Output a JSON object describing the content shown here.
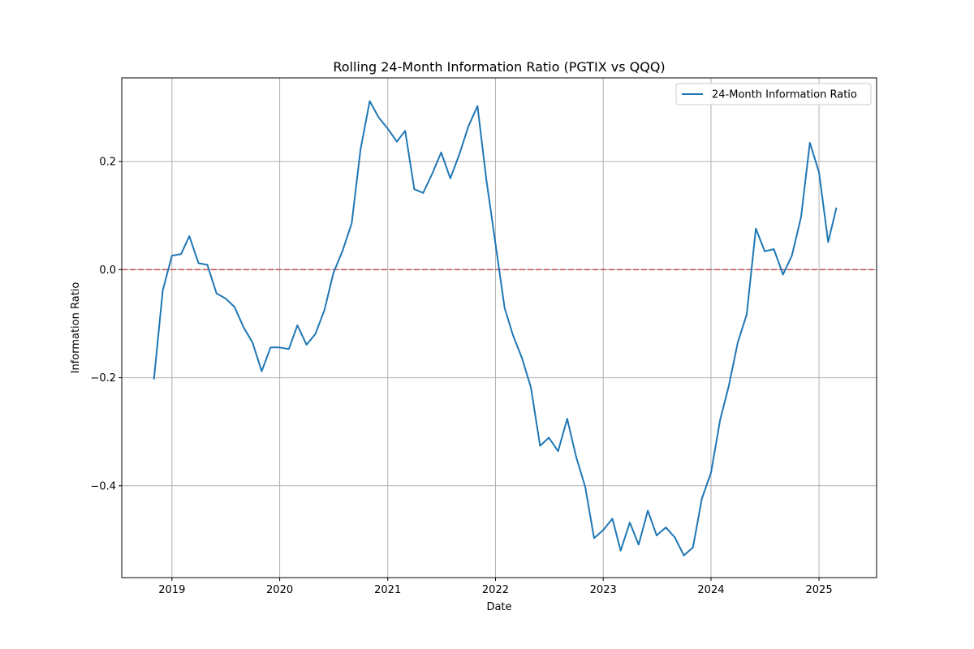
{
  "chart_data": {
    "type": "line",
    "title": "Rolling 24-Month Information Ratio (PGTIX vs QQQ)",
    "xlabel": "Date",
    "ylabel": "Information Ratio",
    "xlim": [
      "2018-07-15",
      "2025-07-15"
    ],
    "ylim": [
      -0.57,
      0.355
    ],
    "x_ticks": [
      "2019-01-01",
      "2020-01-01",
      "2021-01-01",
      "2022-01-01",
      "2023-01-01",
      "2024-01-01",
      "2025-01-01"
    ],
    "x_tick_labels": [
      "2019",
      "2020",
      "2021",
      "2022",
      "2023",
      "2024",
      "2025"
    ],
    "y_ticks": [
      -0.4,
      -0.2,
      0.0,
      0.2
    ],
    "y_tick_labels": [
      "−0.4",
      "−0.2",
      "0.0",
      "0.2"
    ],
    "grid": true,
    "legend_position": "top-right",
    "colors": {
      "series": "#1f77b4",
      "reference": "#d62728",
      "grid": "#b0b0b0"
    },
    "reference_line": {
      "y": 0.0,
      "style": "dashed"
    },
    "series": [
      {
        "name": "24-Month Information Ratio",
        "x": [
          "2018-11-01",
          "2018-12-01",
          "2019-01-01",
          "2019-02-01",
          "2019-03-01",
          "2019-04-01",
          "2019-05-01",
          "2019-06-01",
          "2019-07-01",
          "2019-08-01",
          "2019-09-01",
          "2019-10-01",
          "2019-11-01",
          "2019-12-01",
          "2020-01-01",
          "2020-02-01",
          "2020-03-01",
          "2020-04-01",
          "2020-05-01",
          "2020-06-01",
          "2020-07-01",
          "2020-08-01",
          "2020-09-01",
          "2020-10-01",
          "2020-11-01",
          "2020-12-01",
          "2021-01-01",
          "2021-02-01",
          "2021-03-01",
          "2021-04-01",
          "2021-05-01",
          "2021-06-01",
          "2021-07-01",
          "2021-08-01",
          "2021-09-01",
          "2021-10-01",
          "2021-11-01",
          "2021-12-01",
          "2022-01-01",
          "2022-02-01",
          "2022-03-01",
          "2022-04-01",
          "2022-05-01",
          "2022-06-01",
          "2022-07-01",
          "2022-08-01",
          "2022-09-01",
          "2022-10-01",
          "2022-11-01",
          "2022-12-01",
          "2023-01-01",
          "2023-02-01",
          "2023-03-01",
          "2023-04-01",
          "2023-05-01",
          "2023-06-01",
          "2023-07-01",
          "2023-08-01",
          "2023-09-01",
          "2023-10-01",
          "2023-11-01",
          "2023-12-01",
          "2024-01-01",
          "2024-02-01",
          "2024-03-01",
          "2024-04-01",
          "2024-05-01",
          "2024-06-01",
          "2024-07-01",
          "2024-08-01",
          "2024-09-01",
          "2024-10-01",
          "2024-11-01",
          "2024-12-01",
          "2025-01-01",
          "2025-02-01",
          "2025-03-01"
        ],
        "values": [
          -0.203,
          -0.038,
          0.026,
          0.029,
          0.062,
          0.012,
          0.009,
          -0.044,
          -0.053,
          -0.069,
          -0.107,
          -0.135,
          -0.188,
          -0.144,
          -0.144,
          -0.147,
          -0.103,
          -0.139,
          -0.119,
          -0.074,
          -0.006,
          0.035,
          0.086,
          0.223,
          0.312,
          0.282,
          0.261,
          0.237,
          0.257,
          0.149,
          0.142,
          0.178,
          0.217,
          0.169,
          0.214,
          0.265,
          0.303,
          0.167,
          0.048,
          -0.071,
          -0.121,
          -0.164,
          -0.218,
          -0.326,
          -0.311,
          -0.336,
          -0.276,
          -0.346,
          -0.402,
          -0.497,
          -0.482,
          -0.461,
          -0.52,
          -0.468,
          -0.509,
          -0.446,
          -0.492,
          -0.477,
          -0.496,
          -0.529,
          -0.514,
          -0.424,
          -0.376,
          -0.278,
          -0.216,
          -0.134,
          -0.083,
          0.076,
          0.034,
          0.038,
          -0.009,
          0.026,
          0.097,
          0.235,
          0.18,
          0.051,
          0.115
        ]
      }
    ]
  }
}
